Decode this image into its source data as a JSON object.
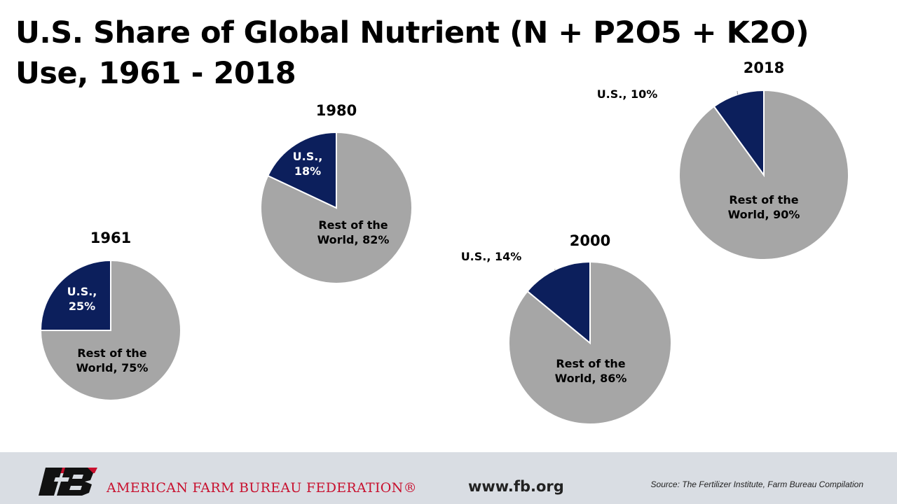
{
  "title": "U.S. Share of Global Nutrient (N + P2O5 + K2O) Use, 1961 - 2018",
  "colors": {
    "us": "#0c1f5c",
    "rest": "#a6a6a6"
  },
  "chart_data": [
    {
      "type": "pie",
      "title": "1961",
      "slices": [
        {
          "label_lines": [
            "U.S.,",
            "25%"
          ],
          "label": "U.S., 25%",
          "value": 25,
          "color": "#0c1f5c"
        },
        {
          "label_lines": [
            "Rest of the",
            "World, 75%"
          ],
          "label": "Rest of the World, 75%",
          "value": 75,
          "color": "#a6a6a6"
        }
      ]
    },
    {
      "type": "pie",
      "title": "1980",
      "slices": [
        {
          "label_lines": [
            "U.S.,",
            "18%"
          ],
          "label": "U.S., 18%",
          "value": 18,
          "color": "#0c1f5c"
        },
        {
          "label_lines": [
            "Rest of the",
            "World, 82%"
          ],
          "label": "Rest of the World, 82%",
          "value": 82,
          "color": "#a6a6a6"
        }
      ]
    },
    {
      "type": "pie",
      "title": "2000",
      "slices": [
        {
          "label_lines": [
            "U.S., 14%"
          ],
          "label": "U.S., 14%",
          "value": 14,
          "color": "#0c1f5c"
        },
        {
          "label_lines": [
            "Rest of the",
            "World, 86%"
          ],
          "label": "Rest of the World, 86%",
          "value": 86,
          "color": "#a6a6a6"
        }
      ]
    },
    {
      "type": "pie",
      "title": "2018",
      "slices": [
        {
          "label_lines": [
            "U.S., 10%"
          ],
          "label": "U.S., 10%",
          "value": 10,
          "color": "#0c1f5c"
        },
        {
          "label_lines": [
            "Rest of the",
            "World, 90%"
          ],
          "label": "Rest of the World, 90%",
          "value": 90,
          "color": "#a6a6a6"
        }
      ]
    }
  ],
  "footer": {
    "logo_text": "FB",
    "org_name": "AMERICAN FARM BUREAU FEDERATION®",
    "url": "www.fb.org",
    "source": "Source: The Fertilizer Institute, Farm Bureau Compilation"
  }
}
